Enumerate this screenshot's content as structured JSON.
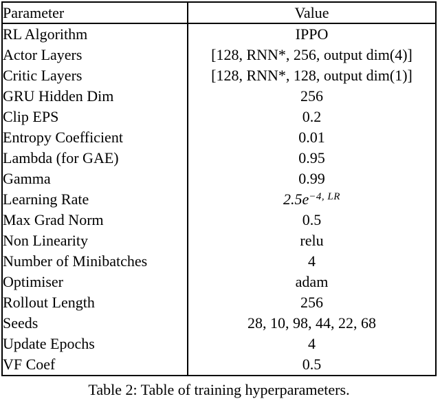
{
  "colors": {
    "text": "#000000",
    "background": "#ffffff",
    "border": "#000000"
  },
  "table": {
    "headers": [
      "Parameter",
      "Value"
    ],
    "rows": [
      {
        "param": "RL Algorithm",
        "value": "IPPO"
      },
      {
        "param": "Actor Layers",
        "value": "[128, RNN*, 256, output dim(4)]"
      },
      {
        "param": "Critic Layers",
        "value": "[128, RNN*, 128, output dim(1)]"
      },
      {
        "param": "GRU Hidden Dim",
        "value": "256"
      },
      {
        "param": "Clip EPS",
        "value": "0.2"
      },
      {
        "param": "Entropy Coefficient",
        "value": "0.01"
      },
      {
        "param": "Lambda (for GAE)",
        "value": "0.95"
      },
      {
        "param": "Gamma",
        "value": "0.99"
      },
      {
        "param": "Learning Rate",
        "value_base": "2.5e",
        "value_sup": "−4, LR"
      },
      {
        "param": "Max Grad Norm",
        "value": "0.5"
      },
      {
        "param": "Non Linearity",
        "value": "relu"
      },
      {
        "param": "Number of Minibatches",
        "value": "4"
      },
      {
        "param": "Optimiser",
        "value": "adam"
      },
      {
        "param": "Rollout Length",
        "value": "256"
      },
      {
        "param": "Seeds",
        "value": "28, 10, 98, 44, 22, 68"
      },
      {
        "param": "Update Epochs",
        "value": "4"
      },
      {
        "param": "VF Coef",
        "value": "0.5"
      }
    ]
  },
  "caption": "Table 2: Table of training hyperparameters."
}
